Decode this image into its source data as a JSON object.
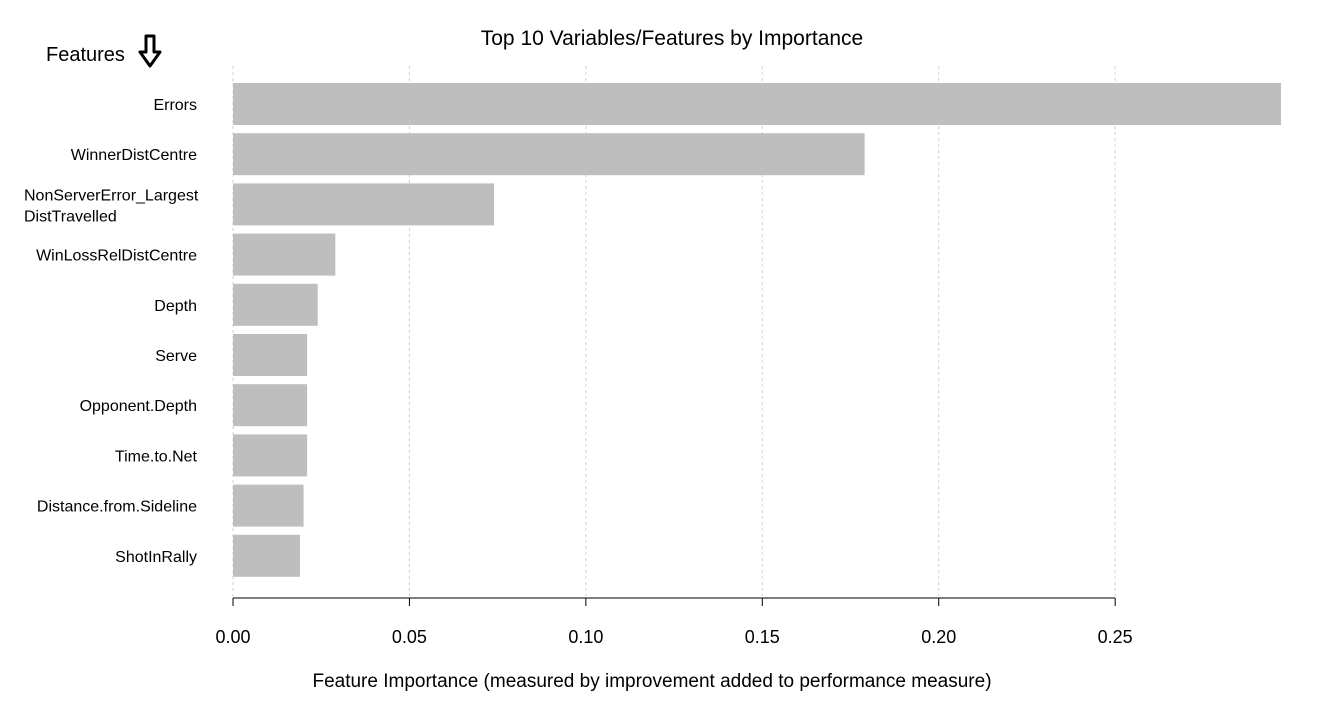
{
  "chart_data": {
    "type": "bar",
    "orientation": "horizontal",
    "title": "Top 10 Variables/Features by Importance",
    "xlabel": "Feature Importance (measured by improvement added to performance measure)",
    "ylabel": "Features",
    "ylabel_icon": "arrow-down-icon",
    "categories": [
      [
        "Errors"
      ],
      [
        "WinnerDistCentre"
      ],
      [
        "NonServerError_Largest",
        "DistTravelled"
      ],
      [
        "WinLossRelDistCentre"
      ],
      [
        "Depth"
      ],
      [
        "Serve"
      ],
      [
        "Opponent.Depth"
      ],
      [
        "Time.to.Net"
      ],
      [
        "Distance.from.Sideline"
      ],
      [
        "ShotInRally"
      ]
    ],
    "values": [
      0.297,
      0.179,
      0.074,
      0.029,
      0.024,
      0.021,
      0.021,
      0.021,
      0.02,
      0.019
    ],
    "xlim": [
      0,
      0.297
    ],
    "xticks": [
      0.0,
      0.05,
      0.1,
      0.15,
      0.2,
      0.25
    ],
    "xtick_labels": [
      "0.00",
      "0.05",
      "0.10",
      "0.15",
      "0.20",
      "0.25"
    ],
    "grid": "vertical-dashed",
    "bar_color": "#bebebe",
    "grid_color": "#d0d0d0"
  }
}
